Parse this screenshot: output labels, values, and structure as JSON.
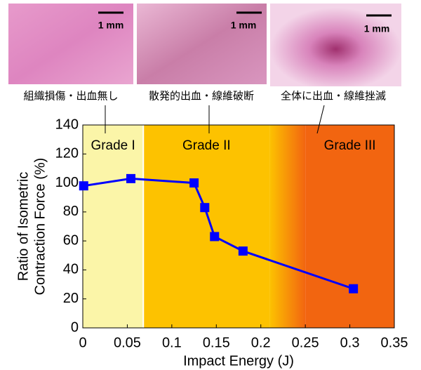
{
  "panels": [
    {
      "caption": "組織損傷・出血無し",
      "scale": "1 mm"
    },
    {
      "caption": "散発的出血・線維破断",
      "scale": "1 mm"
    },
    {
      "caption": "全体に出血・線維挫滅",
      "scale": "1 mm"
    }
  ],
  "chart_data": {
    "type": "line",
    "xlabel": "Impact Energy (J)",
    "ylabel": [
      "Ratio of Isometric",
      "Contraction Force (%)"
    ],
    "regions": [
      {
        "label": "Grade I",
        "start": 0,
        "end": 0.068,
        "color": "#fbf5a8"
      },
      {
        "label": "Grade II",
        "start": 0.068,
        "end": 0.21,
        "color": "#fdc200"
      },
      {
        "label": "Grade III",
        "start": 0.25,
        "end": 0.35,
        "color": "#f26510"
      }
    ],
    "x": [
      0.001,
      0.054,
      0.125,
      0.137,
      0.148,
      0.18,
      0.304
    ],
    "series": [
      {
        "color": "#0000ff",
        "values": [
          98,
          103,
          100,
          83,
          63,
          53,
          27
        ]
      }
    ],
    "xlim": [
      0,
      0.35
    ],
    "xticks": [
      0,
      0.05,
      0.1,
      0.15,
      0.2,
      0.25,
      0.3,
      0.35
    ],
    "ylim": [
      0,
      140
    ],
    "yticks": [
      0,
      20,
      40,
      60,
      80,
      100,
      120,
      140
    ]
  }
}
